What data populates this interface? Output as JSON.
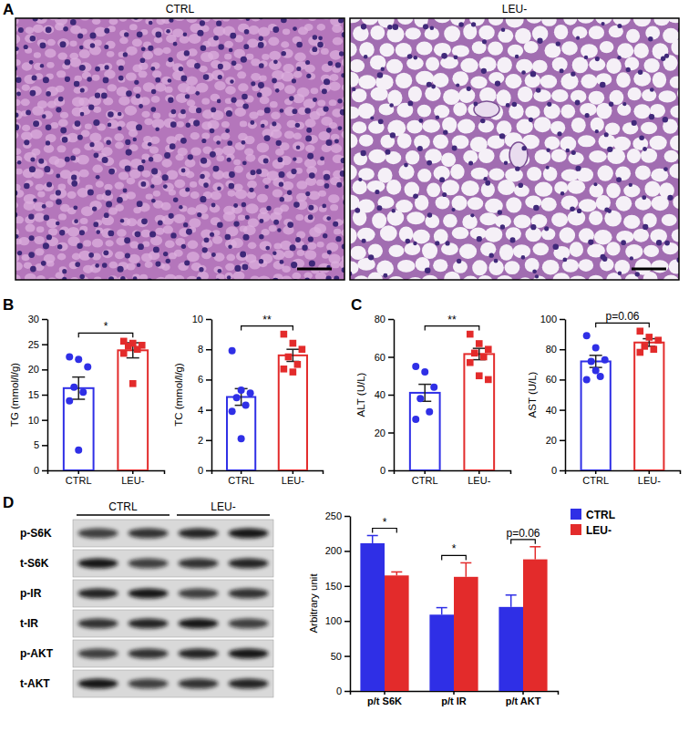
{
  "images": {
    "panel_label": "A",
    "items": [
      {
        "title": "CTRL"
      },
      {
        "title": "LEU-"
      }
    ]
  },
  "blot": {
    "panel_label": "D",
    "columns": [
      "CTRL",
      "LEU-"
    ],
    "rows": [
      "p-S6K",
      "t-S6K",
      "p-IR",
      "t-IR",
      "p-AKT",
      "t-AKT"
    ]
  },
  "chart_data": [
    {
      "type": "bar_scatter",
      "panel_label": "B",
      "y_label": "TG (mmol/l/g)",
      "categories": [
        "CTRL",
        "LEU-"
      ],
      "values": [
        16.3,
        23.8
      ],
      "errors": [
        2.2,
        1.5
      ],
      "colors": [
        "#2f2fe6",
        "#e32b2b"
      ],
      "points": [
        [
          22.5,
          22.0,
          20.5,
          16.5,
          15.5,
          13.8,
          4.0
        ],
        [
          25.6,
          25.2,
          24.8,
          24.6,
          24.0,
          23.2,
          17.2
        ]
      ],
      "ylim": [
        0,
        30
      ],
      "yticks": [
        0,
        5,
        10,
        15,
        20,
        25,
        30
      ],
      "annotation": "*"
    },
    {
      "type": "bar_scatter",
      "y_label": "TC (mmol/l/g)",
      "categories": [
        "CTRL",
        "LEU-"
      ],
      "values": [
        4.85,
        7.6
      ],
      "errors": [
        0.55,
        0.4
      ],
      "colors": [
        "#2f2fe6",
        "#e32b2b"
      ],
      "points": [
        [
          7.9,
          5.3,
          5.1,
          4.8,
          4.3,
          3.9,
          2.1
        ],
        [
          9.0,
          8.4,
          8.0,
          7.5,
          7.0,
          6.7,
          6.5
        ]
      ],
      "ylim": [
        0,
        10
      ],
      "yticks": [
        0,
        2,
        4,
        6,
        8,
        10
      ],
      "annotation": "**"
    },
    {
      "type": "bar_scatter",
      "panel_label": "C",
      "y_label": "ALT (U/L)",
      "categories": [
        "CTRL",
        "LEU-"
      ],
      "values": [
        41,
        61.5
      ],
      "errors": [
        4.5,
        3
      ],
      "colors": [
        "#2f2fe6",
        "#e32b2b"
      ],
      "points": [
        [
          55,
          52,
          44,
          38,
          31,
          27
        ],
        [
          72,
          67,
          64,
          62,
          60,
          57,
          50,
          48
        ]
      ],
      "ylim": [
        0,
        80
      ],
      "yticks": [
        0,
        20,
        40,
        60,
        80
      ],
      "annotation": "**"
    },
    {
      "type": "bar_scatter",
      "y_label": "AST (U/L)",
      "categories": [
        "CTRL",
        "LEU-"
      ],
      "values": [
        72,
        84.5
      ],
      "errors": [
        4,
        2.5
      ],
      "colors": [
        "#2f2fe6",
        "#e32b2b"
      ],
      "points": [
        [
          89,
          81,
          73,
          72,
          62,
          60,
          66
        ],
        [
          92,
          88,
          86,
          82,
          80,
          78
        ]
      ],
      "ylim": [
        0,
        100
      ],
      "yticks": [
        0,
        20,
        40,
        60,
        80,
        100
      ],
      "annotation": "p=0.06"
    },
    {
      "type": "bar",
      "y_label": "Arbitrary unit",
      "categories": [
        "p/t S6K",
        "p/t IR",
        "p/t AKT"
      ],
      "series": [
        {
          "name": "CTRL",
          "color": "#2f2fe6",
          "values": [
            211,
            109,
            120
          ],
          "errors": [
            11,
            10,
            17
          ]
        },
        {
          "name": "LEU-",
          "color": "#e32b2b",
          "values": [
            165,
            163,
            188
          ],
          "errors": [
            5,
            20,
            18
          ]
        }
      ],
      "ylim": [
        0,
        250
      ],
      "yticks": [
        0,
        50,
        100,
        150,
        200,
        250
      ],
      "annotations": [
        "*",
        "*",
        "p=0.06"
      ],
      "legend": "right"
    }
  ]
}
